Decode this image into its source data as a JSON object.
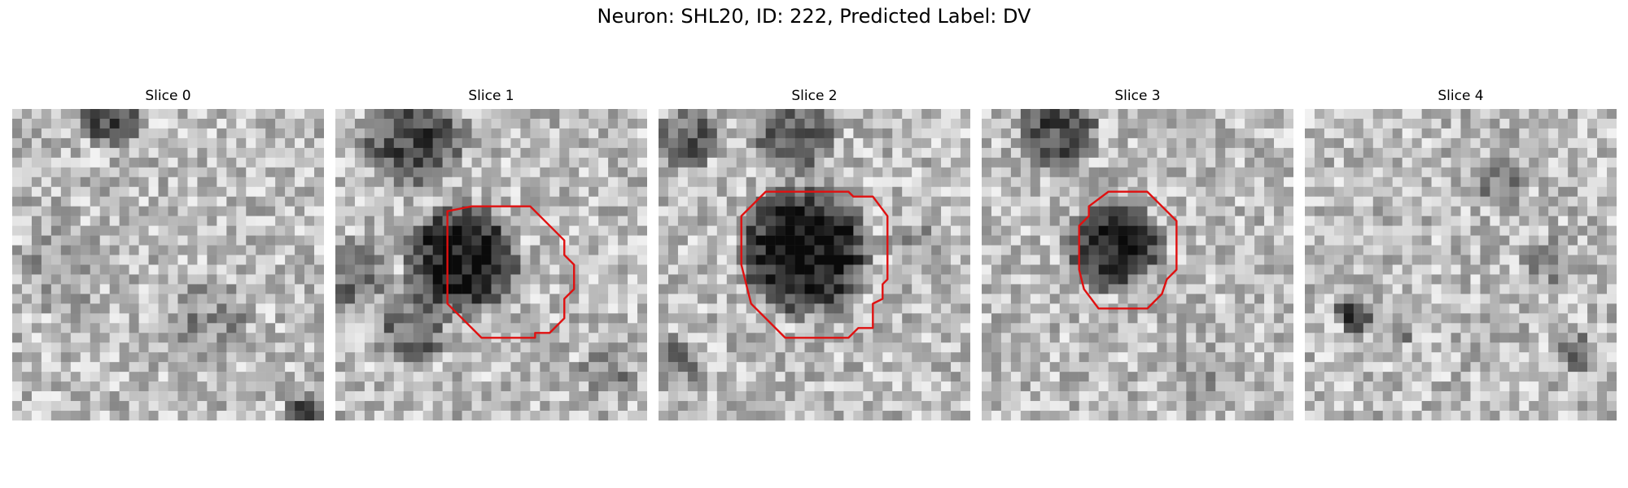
{
  "figure": {
    "title": "Neuron: SHL20, ID: 222, Predicted Label: DV"
  },
  "panels": [
    {
      "title": "Slice 0",
      "has_outline": false
    },
    {
      "title": "Slice 1",
      "has_outline": true
    },
    {
      "title": "Slice 2",
      "has_outline": true
    },
    {
      "title": "Slice 3",
      "has_outline": true
    },
    {
      "title": "Slice 4",
      "has_outline": false
    }
  ],
  "colors": {
    "outline": "#e01010",
    "colormap": "gray"
  }
}
